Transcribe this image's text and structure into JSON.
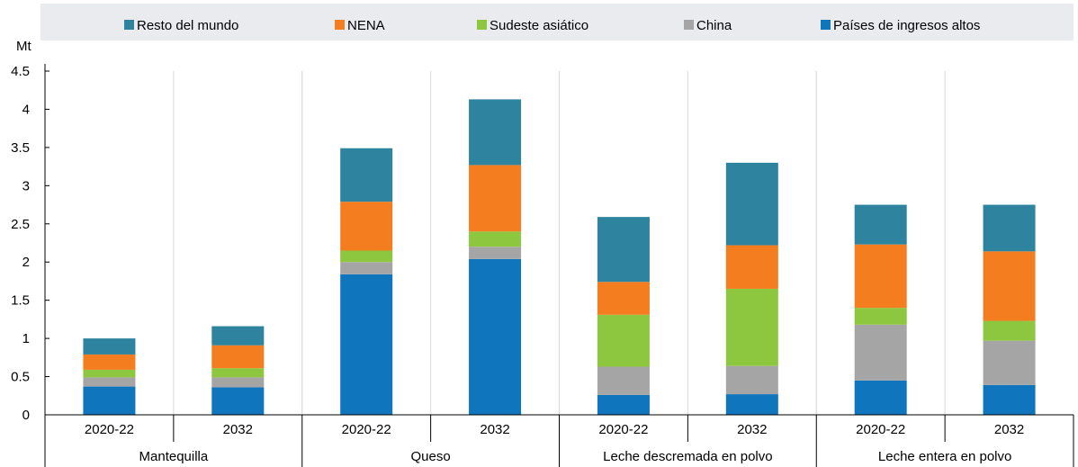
{
  "chart_data": {
    "type": "bar",
    "stacked": true,
    "unit_label": "Mt",
    "ylim": [
      0,
      4.5
    ],
    "y_ticks": [
      "0",
      "0.5",
      "1",
      "1.5",
      "2",
      "2.5",
      "3",
      "3.5",
      "4",
      "4.5"
    ],
    "groups": [
      "Mantequilla",
      "Queso",
      "Leche descremada en polvo",
      "Leche entera en polvo"
    ],
    "categories": [
      "2020-22",
      "2032",
      "2020-22",
      "2032",
      "2020-22",
      "2032",
      "2020-22",
      "2032"
    ],
    "legend_position": "top",
    "grid": "vertical-separators",
    "series": [
      {
        "name": "Países de ingresos altos",
        "color": "#0f75bc",
        "values": [
          0.37,
          0.36,
          1.84,
          2.04,
          0.26,
          0.27,
          0.45,
          0.39
        ]
      },
      {
        "name": "China",
        "color": "#a5a5a5",
        "values": [
          0.12,
          0.13,
          0.16,
          0.16,
          0.37,
          0.37,
          0.73,
          0.58
        ]
      },
      {
        "name": "Sudeste asiático",
        "color": "#8dc63f",
        "values": [
          0.1,
          0.12,
          0.15,
          0.2,
          0.68,
          1.01,
          0.22,
          0.26
        ]
      },
      {
        "name": "NENA",
        "color": "#f47d20",
        "values": [
          0.2,
          0.3,
          0.64,
          0.87,
          0.43,
          0.57,
          0.83,
          0.91
        ]
      },
      {
        "name": "Resto del mundo",
        "color": "#2e849e",
        "values": [
          0.21,
          0.25,
          0.7,
          0.86,
          0.85,
          1.08,
          0.52,
          0.61
        ]
      }
    ],
    "legend_order": [
      "Resto del mundo",
      "NENA",
      "Sudeste asiático",
      "China",
      "Países de ingresos altos"
    ]
  }
}
